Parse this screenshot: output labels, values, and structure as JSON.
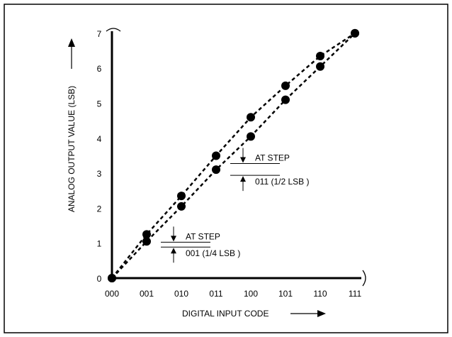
{
  "chart_data": {
    "type": "scatter",
    "xlabel": "DIGITAL INPUT CODE",
    "ylabel": "ANALOG OUTPUT VALUE (LSB)",
    "x_ticks": [
      "000",
      "001",
      "010",
      "011",
      "100",
      "101",
      "110",
      "111"
    ],
    "y_ticks": [
      "0",
      "1",
      "2",
      "3",
      "4",
      "5",
      "6",
      "7"
    ],
    "xlim": [
      0,
      7
    ],
    "ylim": [
      0,
      7
    ],
    "grid": false,
    "series": [
      {
        "x": [
          0,
          1,
          2,
          3,
          4,
          5,
          6,
          7
        ],
        "values": [
          0,
          1.25,
          2.35,
          3.5,
          4.6,
          5.5,
          6.35,
          7
        ]
      },
      {
        "x": [
          0,
          1,
          2,
          3,
          4,
          5,
          6,
          7
        ],
        "values": [
          0,
          1.05,
          2.05,
          3.1,
          4.05,
          5.1,
          6.05,
          7
        ]
      }
    ],
    "annotations": [
      {
        "line1": "AT STEP",
        "line2": "001 (1/4 LSB )",
        "x": 1,
        "y_high": 1.25,
        "y_low": 1.05
      },
      {
        "line1": "AT STEP",
        "line2": "011 (1/2 LSB )",
        "x": 3,
        "y_high": 3.5,
        "y_low": 3.1
      }
    ]
  }
}
